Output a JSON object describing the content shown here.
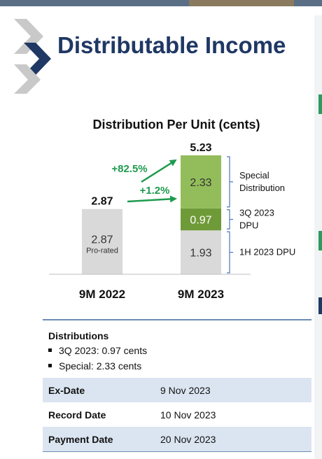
{
  "page": {
    "title": "Distributable Income"
  },
  "chart_data": {
    "type": "bar",
    "title": "Distribution Per Unit (cents)",
    "categories": [
      "9M 2022",
      "9M 2023"
    ],
    "series": [
      {
        "name": "1H 2023 DPU",
        "values": [
          2.87,
          1.93
        ],
        "labels": [
          "2.87",
          "1.93"
        ],
        "sublabels": [
          "Pro-rated",
          ""
        ],
        "color": "#d9d9d9"
      },
      {
        "name": "3Q 2023 DPU",
        "values": [
          0,
          0.97
        ],
        "labels": [
          "",
          "0.97"
        ],
        "color": "#6f9a38"
      },
      {
        "name": "Special Distribution",
        "values": [
          0,
          2.33
        ],
        "labels": [
          "",
          "2.33"
        ],
        "color": "#93bd5a"
      }
    ],
    "totals": [
      "2.87",
      "5.23"
    ],
    "legend_labels": [
      [
        "1H 2023 DPU"
      ],
      [
        "3Q 2023",
        "DPU"
      ],
      [
        "Special",
        "Distribution"
      ]
    ],
    "annotations": [
      {
        "text": "+82.5%",
        "color": "#1e9b4e"
      },
      {
        "text": "+1.2%",
        "color": "#1e9b4e"
      }
    ],
    "legend": "right",
    "grid": false
  },
  "distributions": {
    "heading": "Distributions",
    "items": [
      "3Q 2023: 0.97 cents",
      "Special: 2.33 cents"
    ]
  },
  "dates": [
    {
      "label": "Ex-Date",
      "value": "9 Nov 2023"
    },
    {
      "label": "Record Date",
      "value": "10 Nov 2023"
    },
    {
      "label": "Payment Date",
      "value": "20 Nov 2023"
    }
  ],
  "colors": {
    "title": "#1f3864",
    "chevron_dark": "#1f3864",
    "chevron_light": "#c9c9c9",
    "accent_green": "#1e9b4e",
    "table_alt": "#dbe5f1",
    "rule_blue": "#6b8cb5"
  }
}
